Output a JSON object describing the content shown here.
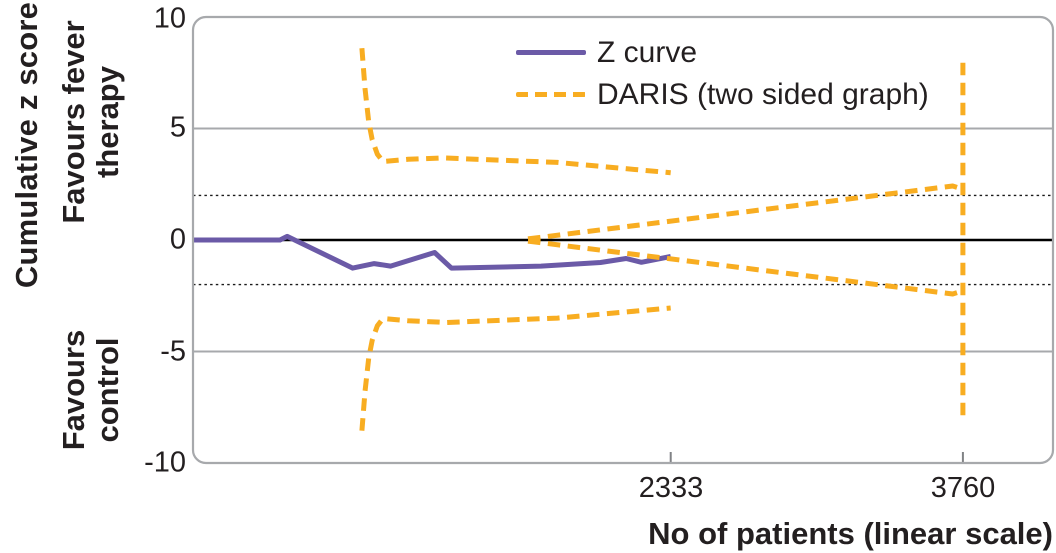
{
  "colors": {
    "z_curve": "#6b5aa7",
    "daris": "#f8ad21",
    "frame": "#a7a9ac",
    "grid_solid": "#a7a9ac",
    "zero_line": "#000000",
    "dotted_line": "#1a1a1a",
    "tick_mark": "#808285",
    "text": "#231f20"
  },
  "y_axis": {
    "title": "Cumulative z score",
    "ticks": [
      "10",
      "5",
      "0",
      "-5",
      "-10"
    ]
  },
  "x_axis": {
    "title": "No of patients (linear scale)",
    "ticks": [
      "2333",
      "3760"
    ]
  },
  "region_labels": {
    "top_line1": "Favours fever",
    "top_line2": "therapy",
    "bottom_line1": "Favours",
    "bottom_line2": "control"
  },
  "legend": {
    "items": [
      {
        "label": "Z curve"
      },
      {
        "label": "DARIS (two sided graph)"
      }
    ]
  },
  "chart_data": {
    "type": "line",
    "title": "",
    "xlabel": "No of patients (linear scale)",
    "ylabel": "Cumulative z score",
    "xlim": [
      0,
      4200
    ],
    "ylim": [
      -10,
      10
    ],
    "x_tick_values": [
      2333,
      3760
    ],
    "y_tick_values": [
      10,
      5,
      0,
      -5,
      -10
    ],
    "gridlines_solid": [
      5,
      -5
    ],
    "gridlines_dotted": [
      2,
      -2
    ],
    "zero_line": 0,
    "legend_position": "top-center-inside",
    "grid": "partial",
    "series": [
      {
        "id": "daris-upper-boundary",
        "name": "DARIS (two sided graph) upper significance boundary",
        "color": "#f8ad21",
        "style": "dashed",
        "points": [
          [
            825,
            8.6
          ],
          [
            840,
            6.8
          ],
          [
            858,
            5.3
          ],
          [
            875,
            4.5
          ],
          [
            900,
            3.85
          ],
          [
            928,
            3.52
          ],
          [
            1050,
            3.62
          ],
          [
            1220,
            3.68
          ],
          [
            1500,
            3.58
          ],
          [
            1780,
            3.48
          ],
          [
            2050,
            3.25
          ],
          [
            2333,
            3.02
          ]
        ]
      },
      {
        "id": "daris-lower-boundary",
        "name": "DARIS (two sided graph) lower significance boundary",
        "color": "#f8ad21",
        "style": "dashed",
        "points": [
          [
            825,
            -8.55
          ],
          [
            840,
            -6.8
          ],
          [
            858,
            -5.3
          ],
          [
            875,
            -4.5
          ],
          [
            900,
            -3.85
          ],
          [
            928,
            -3.52
          ],
          [
            1050,
            -3.62
          ],
          [
            1240,
            -3.7
          ],
          [
            1500,
            -3.6
          ],
          [
            1780,
            -3.5
          ],
          [
            2050,
            -3.28
          ],
          [
            2333,
            -3.05
          ]
        ]
      },
      {
        "id": "daris-futility-upper",
        "name": "DARIS futility wedge upper line",
        "color": "#f8ad21",
        "style": "dashed",
        "points": [
          [
            1636,
            0.05
          ],
          [
            3710,
            2.42
          ],
          [
            3760,
            2.28
          ]
        ]
      },
      {
        "id": "daris-futility-lower",
        "name": "DARIS futility wedge lower line",
        "color": "#f8ad21",
        "style": "dashed",
        "points": [
          [
            1636,
            -0.05
          ],
          [
            3710,
            -2.42
          ],
          [
            3760,
            -2.28
          ]
        ]
      },
      {
        "id": "daris-required-information-line",
        "name": "DARIS required information size vertical line",
        "color": "#f8ad21",
        "style": "dashed",
        "points": [
          [
            3760,
            7.95
          ],
          [
            3760,
            -7.9
          ]
        ]
      },
      {
        "id": "z-curve",
        "name": "Z curve",
        "color": "#6b5aa7",
        "style": "solid",
        "points": [
          [
            0,
            0
          ],
          [
            425,
            0
          ],
          [
            460,
            0.16
          ],
          [
            780,
            -1.26
          ],
          [
            885,
            -1.06
          ],
          [
            965,
            -1.17
          ],
          [
            1180,
            -0.56
          ],
          [
            1262,
            -1.26
          ],
          [
            1700,
            -1.17
          ],
          [
            1990,
            -1.01
          ],
          [
            2115,
            -0.83
          ],
          [
            2190,
            -1.0
          ],
          [
            2333,
            -0.74
          ]
        ]
      }
    ]
  }
}
